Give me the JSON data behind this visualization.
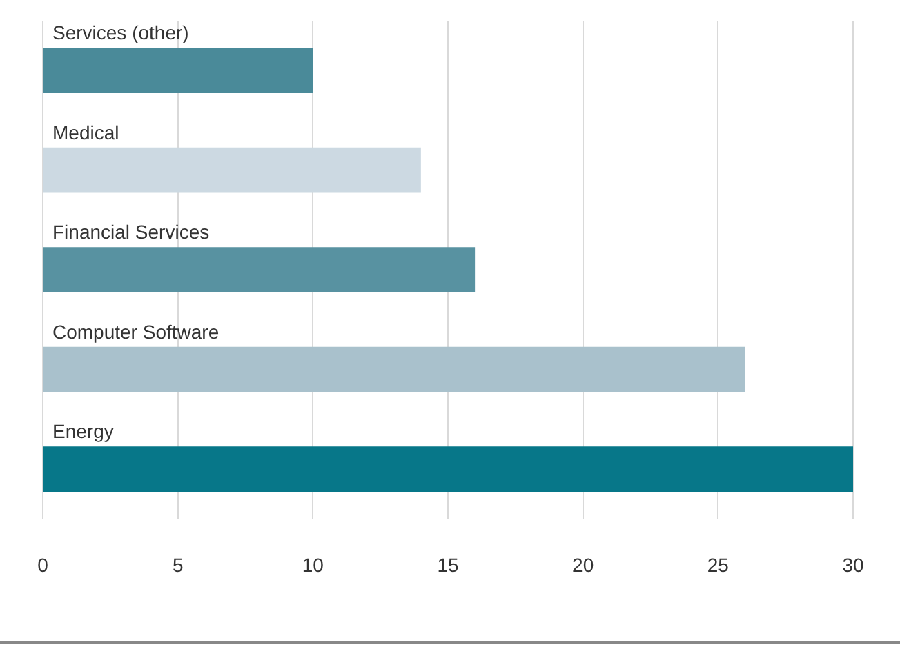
{
  "chart_data": {
    "type": "bar",
    "orientation": "horizontal",
    "categories": [
      "Services (other)",
      "Medical",
      "Financial Services",
      "Computer Software",
      "Energy"
    ],
    "values": [
      10,
      14,
      16,
      26,
      30
    ],
    "colors": [
      "#4a8a99",
      "#ccd9e2",
      "#5892a1",
      "#a9c1cc",
      "#077789"
    ],
    "xlim": [
      0,
      30
    ],
    "xticks": [
      0,
      5,
      10,
      15,
      20,
      25,
      30
    ],
    "grid": "x",
    "legend": false
  }
}
